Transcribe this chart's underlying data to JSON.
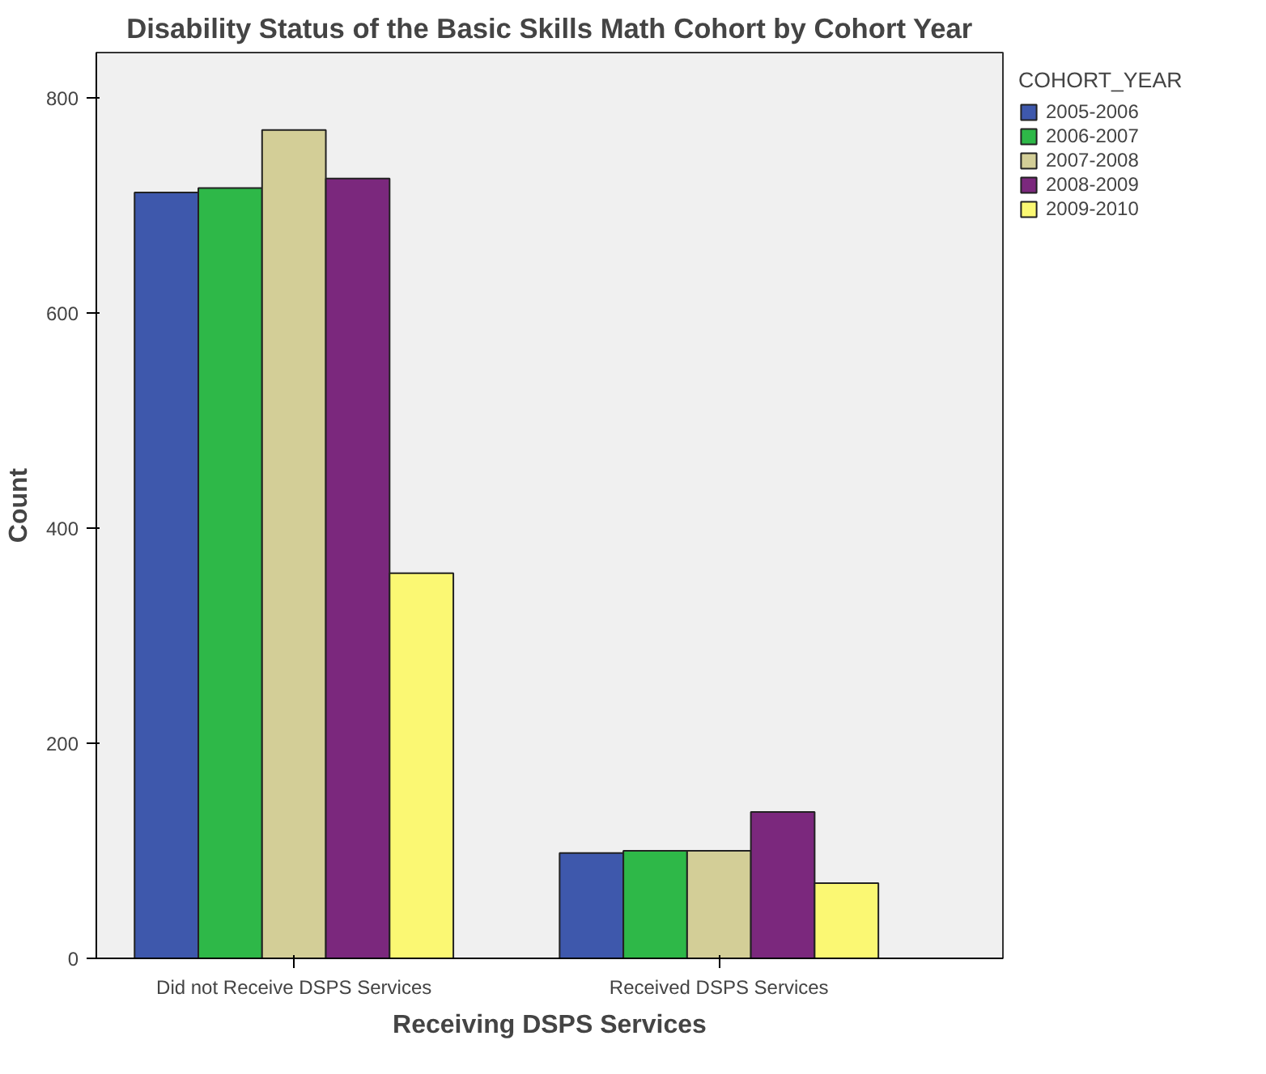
{
  "chart_data": {
    "type": "bar",
    "title": "Disability Status of the Basic Skills Math Cohort by Cohort Year",
    "xlabel": "Receiving DSPS Services",
    "ylabel": "Count",
    "legend_title": "COHORT_YEAR",
    "categories": [
      "Did not Receive DSPS Services",
      "Received DSPS Services"
    ],
    "series": [
      {
        "name": "2005-2006",
        "color": "#3e58ac",
        "values": [
          712,
          98
        ]
      },
      {
        "name": "2006-2007",
        "color": "#2eb848",
        "values": [
          716,
          100
        ]
      },
      {
        "name": "2007-2008",
        "color": "#d3ce97",
        "values": [
          770,
          100
        ]
      },
      {
        "name": "2008-2009",
        "color": "#7b287d",
        "values": [
          725,
          136
        ]
      },
      {
        "name": "2009-2010",
        "color": "#fbf873",
        "values": [
          358,
          70
        ]
      }
    ],
    "ylim": [
      0,
      842
    ],
    "yticks": [
      0,
      200,
      400,
      600,
      800
    ],
    "grid": false,
    "legend": "top right"
  }
}
